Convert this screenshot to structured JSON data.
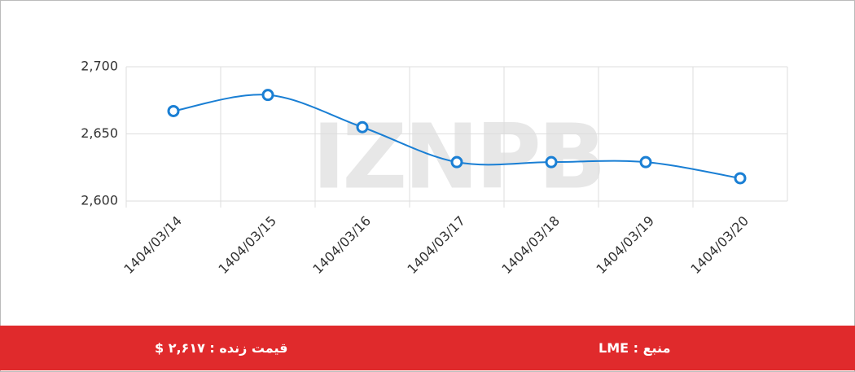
{
  "chart_data": {
    "type": "line",
    "categories": [
      "1404/03/14",
      "1404/03/15",
      "1404/03/16",
      "1404/03/17",
      "1404/03/18",
      "1404/03/19",
      "1404/03/20"
    ],
    "series": [
      {
        "color": "#1a7fd4",
        "values": [
          2667,
          2679,
          2655,
          2629,
          2629,
          2629,
          2617
        ]
      }
    ],
    "ylim": [
      2600,
      2700
    ],
    "yticks": [
      {
        "value": 2600,
        "label": "2,600"
      },
      {
        "value": 2650,
        "label": "2,650"
      },
      {
        "value": 2700,
        "label": "2,700"
      }
    ],
    "grid": true,
    "smooth": true,
    "watermark": "IZNPB"
  },
  "footer": {
    "price": "قیمت زنده : ۲,۶۱۷ $",
    "source": "منبع : LME"
  }
}
